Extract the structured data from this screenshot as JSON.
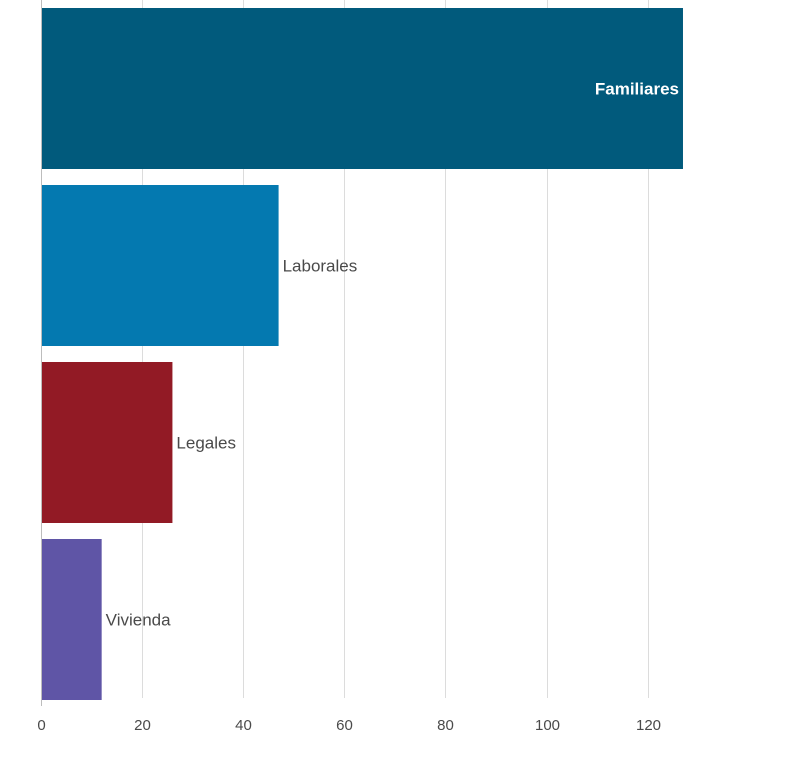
{
  "chart_data": {
    "type": "bar",
    "orientation": "horizontal",
    "categories": [
      "Familiares",
      "Laborales",
      "Legales",
      "Vivienda"
    ],
    "values": [
      127,
      47,
      26,
      12
    ],
    "colors": [
      "#015a7c",
      "#0479b0",
      "#921a25",
      "#5f55a6"
    ],
    "label_inside": [
      true,
      false,
      false,
      false
    ],
    "xlim": [
      0,
      135
    ],
    "xticks": [
      0,
      20,
      40,
      60,
      80,
      100,
      120
    ],
    "xtick_labels": [
      "0",
      "20",
      "40",
      "60",
      "80",
      "100",
      "120"
    ],
    "grid": true,
    "title": "",
    "xlabel": "",
    "ylabel": ""
  }
}
